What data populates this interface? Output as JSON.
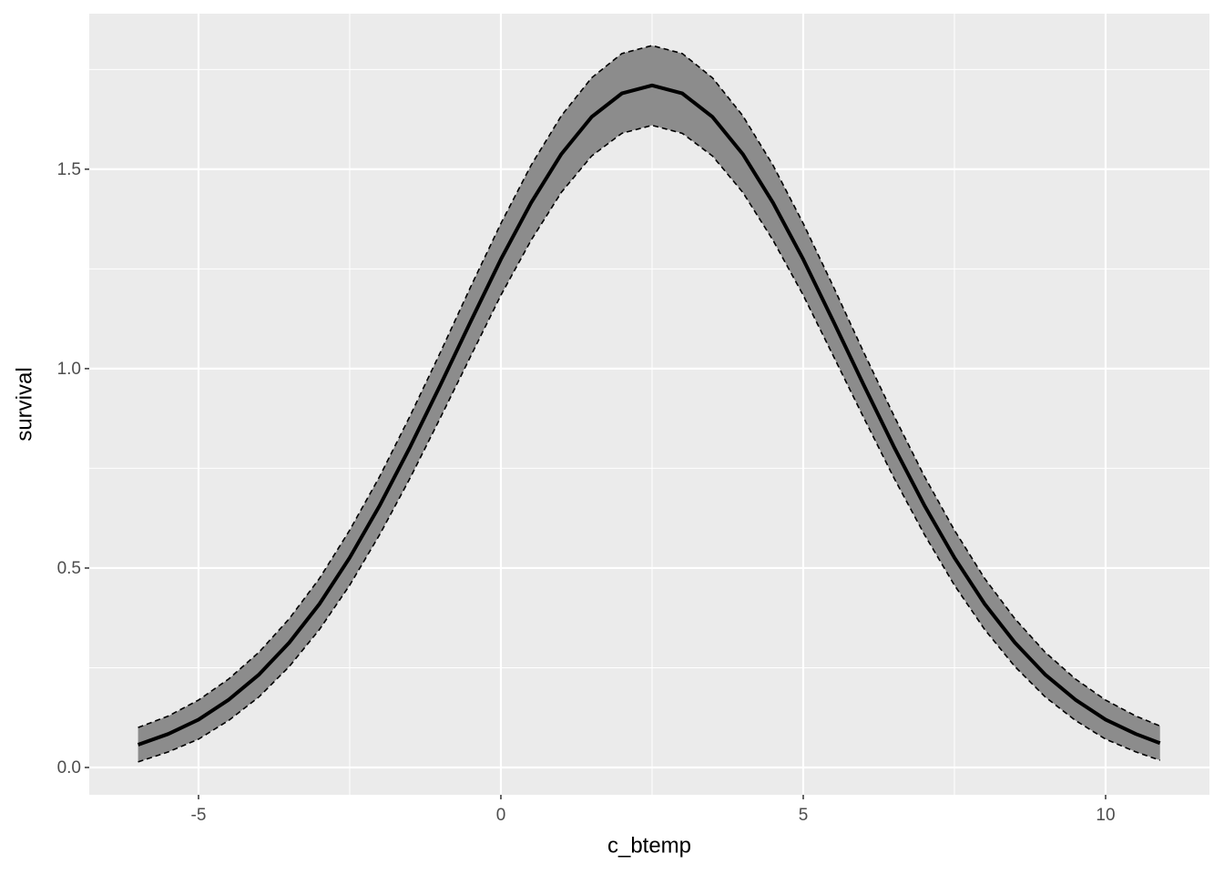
{
  "chart_data": {
    "type": "ribbon_line",
    "x_label": "c_btemp",
    "y_label": "survival",
    "x": [
      -6,
      -5.5,
      -5,
      -4.5,
      -4,
      -3.5,
      -3,
      -2.5,
      -2,
      -1.5,
      -1,
      -0.5,
      0,
      0.5,
      1,
      1.5,
      2,
      2.5,
      3,
      3.5,
      4,
      4.5,
      5,
      5.5,
      6,
      6.5,
      7,
      7.5,
      8,
      8.5,
      9,
      9.5,
      10,
      10.5,
      10.9
    ],
    "values": [
      0.057,
      0.084,
      0.12,
      0.17,
      0.233,
      0.313,
      0.41,
      0.526,
      0.658,
      0.804,
      0.959,
      1.118,
      1.274,
      1.416,
      1.538,
      1.631,
      1.69,
      1.71,
      1.69,
      1.631,
      1.538,
      1.416,
      1.274,
      1.118,
      0.959,
      0.804,
      0.658,
      0.526,
      0.41,
      0.313,
      0.233,
      0.17,
      0.12,
      0.084,
      0.061
    ],
    "lower": [
      0.014,
      0.039,
      0.071,
      0.118,
      0.177,
      0.253,
      0.346,
      0.457,
      0.585,
      0.726,
      0.877,
      1.031,
      1.184,
      1.322,
      1.442,
      1.533,
      1.59,
      1.61,
      1.59,
      1.533,
      1.442,
      1.322,
      1.184,
      1.031,
      0.877,
      0.726,
      0.585,
      0.457,
      0.346,
      0.253,
      0.177,
      0.118,
      0.071,
      0.039,
      0.018
    ],
    "upper": [
      0.1,
      0.129,
      0.169,
      0.222,
      0.289,
      0.373,
      0.474,
      0.595,
      0.731,
      0.882,
      1.041,
      1.205,
      1.364,
      1.51,
      1.634,
      1.729,
      1.79,
      1.81,
      1.79,
      1.729,
      1.634,
      1.51,
      1.364,
      1.205,
      1.041,
      0.882,
      0.731,
      0.595,
      0.474,
      0.373,
      0.289,
      0.222,
      0.169,
      0.129,
      0.104
    ],
    "line_color": "#000000",
    "ribbon_color": "#8c8c8c",
    "xlim": [
      -6.807,
      11.717
    ],
    "ylim": [
      -0.0685,
      1.89
    ],
    "xticks": [
      -5,
      0,
      5,
      10
    ],
    "yticks": [
      {
        "value": 0,
        "label": "0.0"
      },
      0.5,
      {
        "value": 1,
        "label": "1.0"
      },
      1.5
    ],
    "x_minor_ticks": [
      -2.5,
      2.5,
      7.5
    ],
    "y_minor_ticks": [
      0.25,
      0.75,
      1.25,
      1.75
    ],
    "grid": true
  }
}
